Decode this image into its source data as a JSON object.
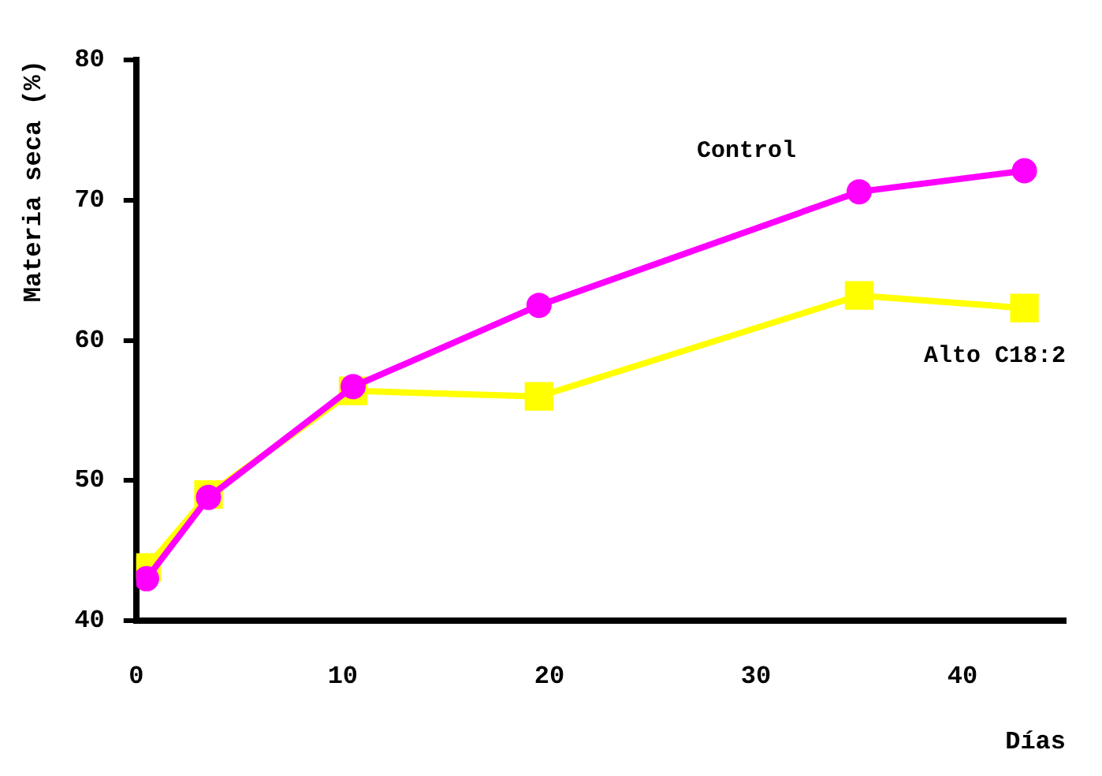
{
  "chart_data": {
    "type": "line",
    "xlabel": "Días",
    "ylabel": "Materia seca (%)",
    "xlim": [
      0,
      45
    ],
    "xticks": [
      0,
      10,
      20,
      30,
      40
    ],
    "ylim": [
      40,
      80
    ],
    "yticks": [
      40,
      50,
      60,
      70,
      80
    ],
    "grid": false,
    "legend": false,
    "line_style": "solid",
    "series": [
      {
        "name": "Control",
        "color": "#ff00ff",
        "marker": "circle",
        "x": [
          0.5,
          3.5,
          10.5,
          19.5,
          35,
          43
        ],
        "values": [
          43,
          48.8,
          56.7,
          62.5,
          70.6,
          72.1
        ]
      },
      {
        "name": "Alto C18:2",
        "color": "#ffff00",
        "marker": "square",
        "x": [
          0.5,
          3.5,
          10.5,
          19.5,
          35,
          43
        ],
        "values": [
          43.8,
          49,
          56.4,
          56,
          63.2,
          62.3
        ]
      }
    ]
  }
}
